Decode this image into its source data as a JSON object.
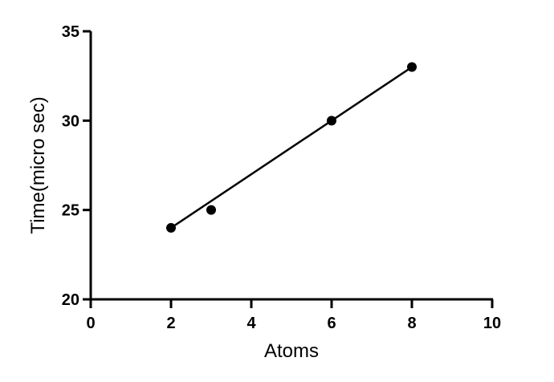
{
  "chart_data": {
    "type": "scatter",
    "title": "",
    "xlabel": "Atoms",
    "ylabel": "Time(micro sec)",
    "xlim": [
      0,
      10
    ],
    "ylim": [
      20,
      35
    ],
    "xticks": [
      0,
      2,
      4,
      6,
      8,
      10
    ],
    "yticks": [
      20,
      25,
      30,
      35
    ],
    "grid": false,
    "series": [
      {
        "x": [
          2,
          3,
          6,
          8
        ],
        "y": [
          24,
          25,
          30,
          33
        ],
        "marker": "circle",
        "color": "#000000"
      }
    ],
    "fit_line": {
      "type": "linear",
      "x": [
        2,
        8
      ],
      "y": [
        24,
        33
      ],
      "color": "#000000"
    }
  }
}
